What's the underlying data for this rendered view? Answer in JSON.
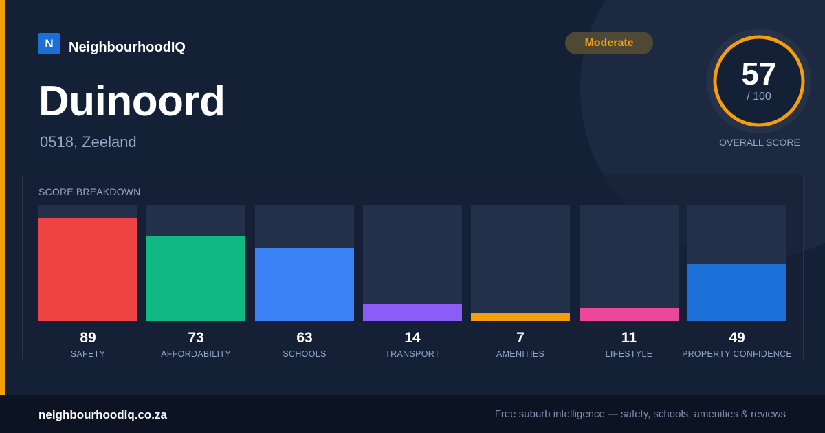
{
  "brand": {
    "logo_letter": "N",
    "name": "NeighbourhoodIQ"
  },
  "suburb": {
    "name": "Duinoord",
    "location": "0518, Zeeland"
  },
  "rating_badge": "Moderate",
  "overall": {
    "score": "57",
    "max_text": "/ 100",
    "label": "OVERALL SCORE",
    "fraction": 0.57
  },
  "breakdown": {
    "title": "SCORE BREAKDOWN"
  },
  "colors": {
    "accent": "#f59e0b",
    "background": "#142036",
    "track": "#223049",
    "muted_text": "#94a7c6"
  },
  "chart_data": {
    "type": "bar",
    "title": "SCORE BREAKDOWN",
    "ylim": [
      0,
      100
    ],
    "categories": [
      "SAFETY",
      "AFFORDABILITY",
      "SCHOOLS",
      "TRANSPORT",
      "AMENITIES",
      "LIFESTYLE",
      "PROPERTY CONFIDENCE"
    ],
    "values": [
      89,
      73,
      63,
      14,
      7,
      11,
      49
    ],
    "colors": [
      "#ef4444",
      "#10b981",
      "#3b82f6",
      "#8b5cf6",
      "#f59e0b",
      "#ec4899",
      "#1d6fd8"
    ]
  },
  "footer": {
    "domain": "neighbourhoodiq.co.za",
    "tagline": "Free suburb intelligence — safety, schools, amenities & reviews"
  }
}
